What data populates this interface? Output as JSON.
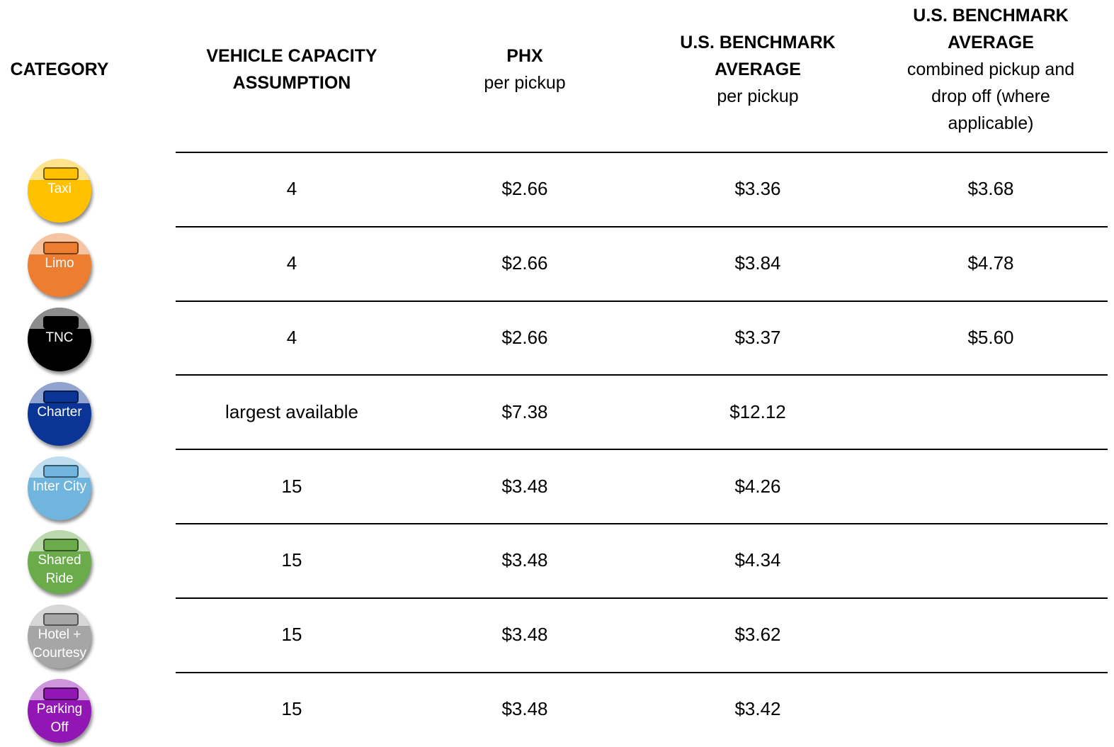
{
  "table": {
    "columns": [
      {
        "title": "CATEGORY"
      },
      {
        "title": "VEHICLE CAPACITY ASSUMPTION"
      },
      {
        "title": "PHX",
        "subtitle": "per pickup"
      },
      {
        "title": "U.S. BENCHMARK AVERAGE",
        "subtitle": "per pickup"
      },
      {
        "title": "U.S. BENCHMARK AVERAGE",
        "subtitle": "combined pickup and drop off (where applicable)"
      }
    ],
    "rows": [
      {
        "category": "Taxi",
        "color": "#ffc000",
        "capacity": "4",
        "phx": "$2.66",
        "us": "$3.36",
        "combined": "$3.68"
      },
      {
        "category": "Limo",
        "color": "#ed7d31",
        "capacity": "4",
        "phx": "$2.66",
        "us": "$3.84",
        "combined": "$4.78"
      },
      {
        "category": "TNC",
        "color": "#000000",
        "capacity": "4",
        "phx": "$2.66",
        "us": "$3.37",
        "combined": "$5.60"
      },
      {
        "category": "Charter",
        "color": "#0a3596",
        "capacity": "largest available",
        "phx": "$7.38",
        "us": "$12.12"
      },
      {
        "category": "Inter City",
        "color": "#6fb5dd",
        "capacity": "15",
        "phx": "$3.48",
        "us": "$4.26"
      },
      {
        "category": "Shared Ride",
        "color": "#6aab4a",
        "capacity": "15",
        "phx": "$3.48",
        "us": "$4.34"
      },
      {
        "category": "Hotel + Courtesy",
        "color": "#a6a6a6",
        "capacity": "15",
        "phx": "$3.48",
        "us": "$3.62"
      },
      {
        "category": "Parking Off",
        "color": "#9216b3",
        "capacity": "15",
        "phx": "$3.48",
        "us": "$3.42"
      }
    ]
  }
}
